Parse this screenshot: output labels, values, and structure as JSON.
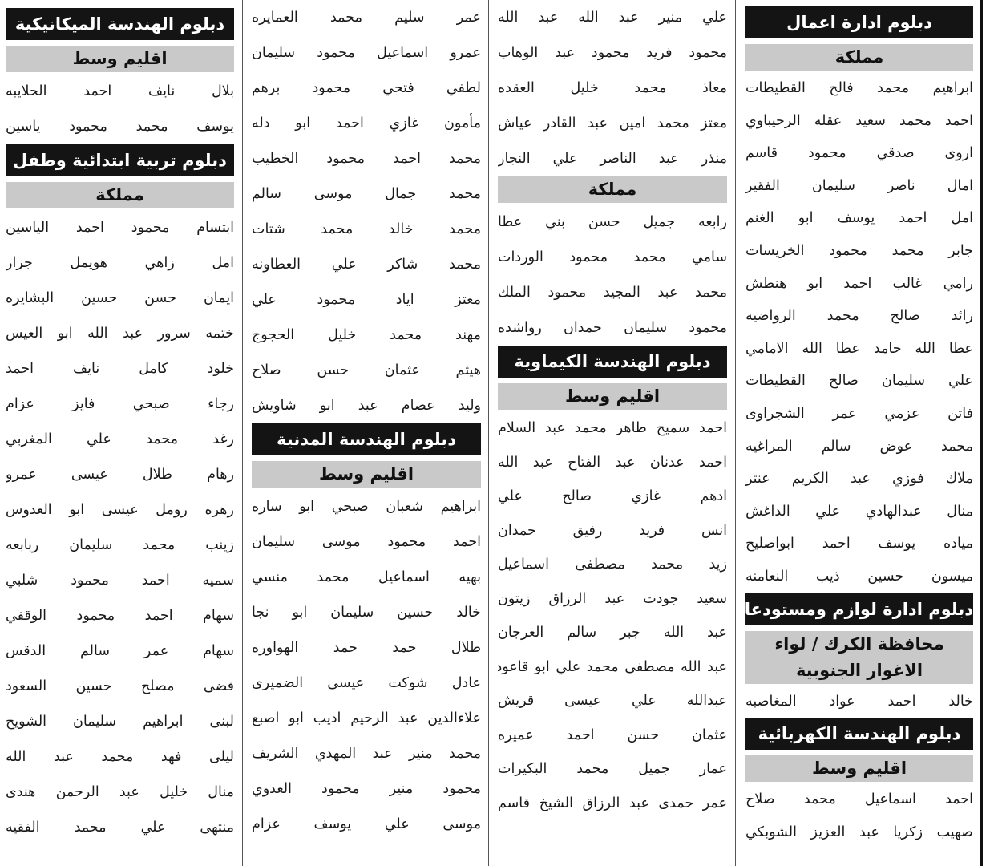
{
  "columns": [
    {
      "items": [
        {
          "type": "header",
          "text": "دبلوم ادارة اعمال"
        },
        {
          "type": "sub",
          "text": "مملكة"
        },
        {
          "type": "name",
          "text": "ابراهيم محمد فالح القطيطات"
        },
        {
          "type": "name",
          "text": "احمد محمد سعيد عقله الرحيباوي"
        },
        {
          "type": "name",
          "text": "اروى صدقي محمود قاسم"
        },
        {
          "type": "name",
          "text": "امال ناصر سليمان الفقير"
        },
        {
          "type": "name",
          "text": "امل احمد يوسف ابو الغنم"
        },
        {
          "type": "name",
          "text": "جابر محمد محمود الخريسات"
        },
        {
          "type": "name",
          "text": "رامي غالب احمد ابو هنطش"
        },
        {
          "type": "name",
          "text": "رائد صالح محمد الرواضيه"
        },
        {
          "type": "name",
          "text": "عطا الله حامد عطا الله الامامي"
        },
        {
          "type": "name",
          "text": "علي سليمان صالح القطيطات"
        },
        {
          "type": "name",
          "text": "فاتن عزمي عمر الشجراوى"
        },
        {
          "type": "name",
          "text": "محمد عوض سالم المراغيه"
        },
        {
          "type": "name",
          "text": "ملاك فوزي عبد الكريم عنتر"
        },
        {
          "type": "name",
          "text": "منال عبدالهادي علي الداغش"
        },
        {
          "type": "name",
          "text": "مياده يوسف احمد ابواصليح"
        },
        {
          "type": "name",
          "text": "ميسون حسين ذيب النعامنه"
        },
        {
          "type": "header",
          "text": "دبلوم ادارة لوازم ومستودعات"
        },
        {
          "type": "sub",
          "text": "محافظة الكرك / لواء الاغوار الجنوبية"
        },
        {
          "type": "name",
          "text": "خالد احمد عواد المغاصبه"
        },
        {
          "type": "header",
          "text": "دبلوم الهندسة الكهربائية"
        },
        {
          "type": "sub",
          "text": "اقليم وسط"
        },
        {
          "type": "name",
          "text": "احمد اسماعيل محمد صلاح"
        },
        {
          "type": "name",
          "text": "صهيب زكريا عبد العزيز الشوبكي"
        }
      ]
    },
    {
      "items": [
        {
          "type": "name",
          "text": "علي منير عبد الله عبد الله"
        },
        {
          "type": "name",
          "text": "محمود فريد محمود عبد الوهاب"
        },
        {
          "type": "name",
          "text": "معاذ محمد خليل العقده"
        },
        {
          "type": "name",
          "text": "معتز محمد امين عبد القادر عياش"
        },
        {
          "type": "name",
          "text": "منذر عبد الناصر علي النجار"
        },
        {
          "type": "sub",
          "text": "مملكة"
        },
        {
          "type": "name",
          "text": "رابعه جميل حسن بني عطا"
        },
        {
          "type": "name",
          "text": "سامي محمد محمود الوردات"
        },
        {
          "type": "name",
          "text": "محمد عبد المجيد محمود الملك"
        },
        {
          "type": "name",
          "text": "محمود سليمان حمدان رواشده"
        },
        {
          "type": "header",
          "text": "دبلوم الهندسة الكيماوية"
        },
        {
          "type": "sub",
          "text": "اقليم وسط"
        },
        {
          "type": "name",
          "text": "احمد سميح طاهر محمد عبد السلام"
        },
        {
          "type": "name",
          "text": "احمد عدنان عبد الفتاح عبد الله"
        },
        {
          "type": "name",
          "text": "ادهم غازي صالح علي"
        },
        {
          "type": "name",
          "text": "انس فريد رفيق حمدان"
        },
        {
          "type": "name",
          "text": "زيد محمد مصطفى اسماعيل"
        },
        {
          "type": "name",
          "text": "سعيد جودت عبد الرزاق زيتون"
        },
        {
          "type": "name",
          "text": "عبد الله جبر سالم العرجان"
        },
        {
          "type": "name",
          "text": "عبد الله مصطفى محمد علي ابو قاعود"
        },
        {
          "type": "name",
          "text": "عبدالله علي عيسى قريش"
        },
        {
          "type": "name",
          "text": "عثمان حسن احمد عميره"
        },
        {
          "type": "name",
          "text": "عمار جميل محمد البكيرات"
        },
        {
          "type": "name",
          "text": "عمر حمدى عبد الرزاق الشيخ قاسم"
        }
      ]
    },
    {
      "items": [
        {
          "type": "name",
          "text": "عمر سليم محمد العمايره"
        },
        {
          "type": "name",
          "text": "عمرو اسماعيل محمود سليمان"
        },
        {
          "type": "name",
          "text": "لطفي فتحي محمود برهم"
        },
        {
          "type": "name",
          "text": "مأمون غازي احمد ابو دله"
        },
        {
          "type": "name",
          "text": "محمد احمد محمود الخطيب"
        },
        {
          "type": "name",
          "text": "محمد جمال موسى سالم"
        },
        {
          "type": "name",
          "text": "محمد خالد محمد شتات"
        },
        {
          "type": "name",
          "text": "محمد شاكر علي العطاونه"
        },
        {
          "type": "name",
          "text": "معتز اياد محمود علي"
        },
        {
          "type": "name",
          "text": "مهند محمد خليل الحجوج"
        },
        {
          "type": "name",
          "text": "هيثم عثمان حسن صلاح"
        },
        {
          "type": "name",
          "text": "وليد عصام عبد ابو شاويش"
        },
        {
          "type": "header",
          "text": "دبلوم الهندسة المدنية"
        },
        {
          "type": "sub",
          "text": "اقليم وسط"
        },
        {
          "type": "name",
          "text": "ابراهيم شعبان صبحي ابو ساره"
        },
        {
          "type": "name",
          "text": "احمد محمود موسى سليمان"
        },
        {
          "type": "name",
          "text": "بهيه اسماعيل محمد منسي"
        },
        {
          "type": "name",
          "text": "خالد حسين سليمان ابو نجا"
        },
        {
          "type": "name",
          "text": "طلال حمد حمد الهواوره"
        },
        {
          "type": "name",
          "text": "عادل شوكت عيسى الضميرى"
        },
        {
          "type": "name",
          "text": "علاءالدين عبد الرحيم اديب ابو اصبع"
        },
        {
          "type": "name",
          "text": "محمد منير عبد المهدي الشريف"
        },
        {
          "type": "name",
          "text": "محمود منير محمود العدوي"
        },
        {
          "type": "name",
          "text": "موسى علي يوسف عزام"
        }
      ]
    },
    {
      "items": [
        {
          "type": "header",
          "text": "دبلوم الهندسة الميكانيكية"
        },
        {
          "type": "sub",
          "text": "اقليم وسط"
        },
        {
          "type": "name",
          "text": "بلال نايف احمد الحلايبه"
        },
        {
          "type": "name",
          "text": "يوسف محمد محمود ياسين"
        },
        {
          "type": "header",
          "text": "دبلوم تربية ابتدائية وطفل"
        },
        {
          "type": "sub",
          "text": "مملكة"
        },
        {
          "type": "name",
          "text": "ابتسام محمود احمد الياسين"
        },
        {
          "type": "name",
          "text": "امل زاهي هويمل جرار"
        },
        {
          "type": "name",
          "text": "ايمان حسن حسين البشايره"
        },
        {
          "type": "name",
          "text": "ختمه سرور عبد الله ابو العيس"
        },
        {
          "type": "name",
          "text": "خلود كامل نايف احمد"
        },
        {
          "type": "name",
          "text": "رجاء صبحي فايز عزام"
        },
        {
          "type": "name",
          "text": "رغد محمد علي المغربي"
        },
        {
          "type": "name",
          "text": "رهام طلال عيسى عمرو"
        },
        {
          "type": "name",
          "text": "زهره رومل عيسى ابو العدوس"
        },
        {
          "type": "name",
          "text": "زينب محمد سليمان ربابعه"
        },
        {
          "type": "name",
          "text": "سميه احمد محمود شلبي"
        },
        {
          "type": "name",
          "text": "سهام احمد محمود الوقفي"
        },
        {
          "type": "name",
          "text": "سهام عمر سالم الدقس"
        },
        {
          "type": "name",
          "text": "فضى مصلح حسين السعود"
        },
        {
          "type": "name",
          "text": "لبنى ابراهيم سليمان الشويخ"
        },
        {
          "type": "name",
          "text": "ليلى فهد محمد عبد الله"
        },
        {
          "type": "name",
          "text": "منال خليل عبد الرحمن هندى"
        },
        {
          "type": "name",
          "text": "منتهى علي محمد الفقيه"
        }
      ]
    }
  ]
}
